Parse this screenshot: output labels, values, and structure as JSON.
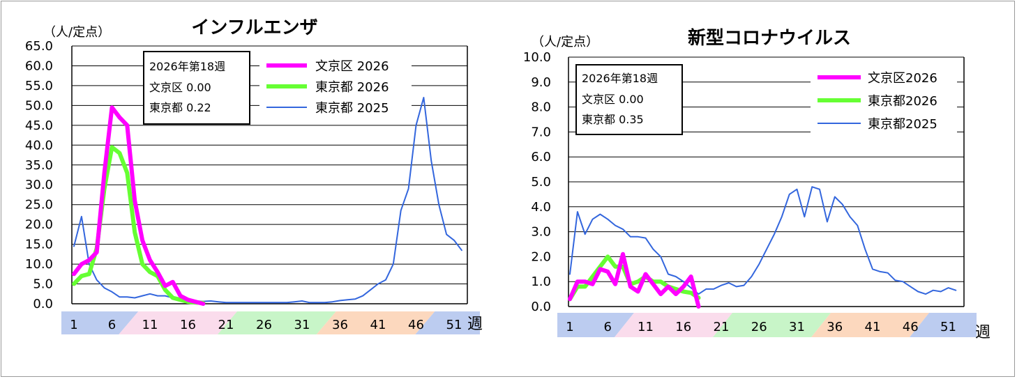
{
  "chart_data": [
    {
      "type": "line",
      "title": "インフルエンザ",
      "ylabel": "（人/定点）",
      "xlabel": "週",
      "ylim": [
        0,
        65
      ],
      "yticks": [
        "0.0",
        "5.0",
        "10.0",
        "15.0",
        "20.0",
        "25.0",
        "30.0",
        "35.0",
        "40.0",
        "45.0",
        "50.0",
        "55.0",
        "60.0",
        "65.0"
      ],
      "xticks": [
        "1",
        "6",
        "11",
        "16",
        "21",
        "26",
        "31",
        "36",
        "41",
        "46",
        "51"
      ],
      "stats": [
        "2026年第18週",
        "文京区  0.00",
        "東京都  0.22"
      ],
      "series": [
        {
          "name": "文京区 2026",
          "color": "#ff00ff",
          "width": 6,
          "x": [
            1,
            2,
            3,
            4,
            5,
            6,
            7,
            8,
            9,
            10,
            11,
            12,
            13,
            14,
            15,
            16,
            17,
            18
          ],
          "y": [
            7.5,
            10,
            11,
            13,
            33,
            49.5,
            47,
            45,
            26,
            16,
            11,
            8,
            4.5,
            5.5,
            2,
            1,
            0.5,
            0
          ]
        },
        {
          "name": "東京都 2026",
          "color": "#66ff33",
          "width": 6,
          "x": [
            1,
            2,
            3,
            4,
            5,
            6,
            7,
            8,
            9,
            10,
            11,
            12,
            13,
            14,
            15,
            16,
            17,
            18
          ],
          "y": [
            5,
            7,
            7.5,
            14,
            29,
            39.5,
            38,
            33,
            18,
            10,
            8,
            7,
            3.5,
            1.5,
            1,
            0.5,
            0.3,
            0.22
          ]
        },
        {
          "name": "東京都 2025",
          "color": "#3366dd",
          "width": 2,
          "x": [
            1,
            2,
            3,
            4,
            5,
            6,
            7,
            8,
            9,
            10,
            11,
            12,
            13,
            14,
            15,
            16,
            17,
            18,
            19,
            20,
            21,
            22,
            23,
            24,
            25,
            26,
            27,
            28,
            29,
            30,
            31,
            32,
            33,
            34,
            35,
            36,
            37,
            38,
            39,
            40,
            41,
            42,
            43,
            44,
            45,
            46,
            47,
            48,
            49,
            50,
            51,
            52
          ],
          "y": [
            14.5,
            22,
            10,
            6,
            4,
            3,
            1.7,
            1.7,
            1.5,
            2,
            2.5,
            2,
            2,
            1.5,
            1,
            1,
            0.7,
            0.6,
            0.7,
            0.5,
            0.3,
            0.3,
            0.3,
            0.3,
            0.3,
            0.3,
            0.3,
            0.3,
            0.3,
            0.5,
            0.7,
            0.3,
            0.3,
            0.3,
            0.5,
            0.8,
            1,
            1.2,
            2,
            3.5,
            5,
            6,
            10,
            23.5,
            29,
            45,
            52,
            36,
            25,
            17.5,
            16,
            13.5
          ]
        }
      ]
    },
    {
      "type": "line",
      "title": "新型コロナウイルス",
      "ylabel": "（人/定点）",
      "xlabel": "週",
      "ylim": [
        0,
        10
      ],
      "yticks": [
        "0.0",
        "1.0",
        "2.0",
        "3.0",
        "4.0",
        "5.0",
        "6.0",
        "7.0",
        "8.0",
        "9.0",
        "10.0"
      ],
      "xticks": [
        "1",
        "6",
        "11",
        "16",
        "21",
        "26",
        "31",
        "36",
        "41",
        "46",
        "51"
      ],
      "stats": [
        "2026年第18週",
        "文京区  0.00",
        "東京都  0.35"
      ],
      "series": [
        {
          "name": "文京区2026",
          "color": "#ff00ff",
          "width": 6,
          "x": [
            1,
            2,
            3,
            4,
            5,
            6,
            7,
            8,
            9,
            10,
            11,
            12,
            13,
            14,
            15,
            16,
            17,
            18
          ],
          "y": [
            0.3,
            1,
            1,
            0.9,
            1.5,
            1.4,
            0.9,
            2.1,
            0.8,
            0.6,
            1.3,
            0.9,
            0.5,
            0.8,
            0.5,
            0.8,
            1.2,
            0
          ]
        },
        {
          "name": "東京都2026",
          "color": "#66ff33",
          "width": 6,
          "x": [
            1,
            2,
            3,
            4,
            5,
            6,
            7,
            8,
            9,
            10,
            11,
            12,
            13,
            14,
            15,
            16,
            17,
            18
          ],
          "y": [
            0.3,
            0.8,
            0.8,
            1.2,
            1.6,
            2,
            1.6,
            1.6,
            0.9,
            1,
            1.2,
            1,
            1,
            0.8,
            0.7,
            0.6,
            0.55,
            0.35
          ]
        },
        {
          "name": "東京都2025",
          "color": "#3366dd",
          "width": 2,
          "x": [
            1,
            2,
            3,
            4,
            5,
            6,
            7,
            8,
            9,
            10,
            11,
            12,
            13,
            14,
            15,
            16,
            17,
            18,
            19,
            20,
            21,
            22,
            23,
            24,
            25,
            26,
            27,
            28,
            29,
            30,
            31,
            32,
            33,
            34,
            35,
            36,
            37,
            38,
            39,
            40,
            41,
            42,
            43,
            44,
            45,
            46,
            47,
            48,
            49,
            50,
            51,
            52
          ],
          "y": [
            1.3,
            3.8,
            2.9,
            3.5,
            3.7,
            3.5,
            3.25,
            3.1,
            2.8,
            2.8,
            2.75,
            2.3,
            2,
            1.3,
            1.2,
            1,
            0.75,
            0.5,
            0.7,
            0.7,
            0.85,
            0.95,
            0.8,
            0.85,
            1.2,
            1.7,
            2.3,
            2.9,
            3.6,
            4.5,
            4.7,
            3.6,
            4.8,
            4.7,
            3.4,
            4.4,
            4.1,
            3.6,
            3.25,
            2.3,
            1.5,
            1.4,
            1.35,
            1.05,
            1,
            0.8,
            0.6,
            0.5,
            0.65,
            0.6,
            0.75,
            0.65
          ]
        }
      ]
    }
  ]
}
